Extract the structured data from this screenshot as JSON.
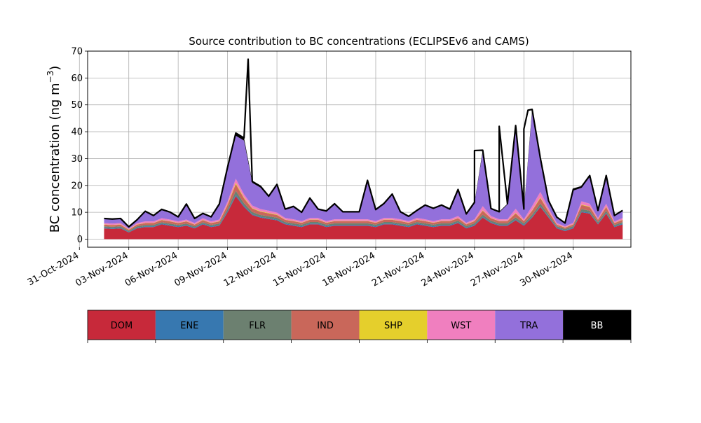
{
  "chart_data": {
    "type": "area",
    "title": "Source contribution to BC concentrations (ECLIPSEv6 and CAMS)",
    "ylabel": "BC concentration (ng m",
    "ylabel_superscript": "−3",
    "ylabel_close": ")",
    "xlabel": "",
    "ylim": [
      -3,
      70
    ],
    "xlim": [
      "2024-10-31T12:00",
      "2024-12-03T12:00"
    ],
    "grid": true,
    "yticks": [
      0,
      10,
      20,
      30,
      40,
      50,
      60,
      70
    ],
    "xticks": [
      "31-Oct-2024",
      "03-Nov-2024",
      "06-Nov-2024",
      "09-Nov-2024",
      "12-Nov-2024",
      "15-Nov-2024",
      "18-Nov-2024",
      "21-Nov-2024",
      "24-Nov-2024",
      "27-Nov-2024",
      "30-Nov-2024"
    ],
    "xtick_dates": [
      "2024-10-31",
      "2024-11-03",
      "2024-11-06",
      "2024-11-09",
      "2024-11-12",
      "2024-11-15",
      "2024-11-18",
      "2024-11-21",
      "2024-11-24",
      "2024-11-27",
      "2024-11-30"
    ],
    "x": [
      "2024-11-01T12:00",
      "2024-11-02T00:00",
      "2024-11-02T12:00",
      "2024-11-03T00:00",
      "2024-11-03T12:00",
      "2024-11-04T00:00",
      "2024-11-04T12:00",
      "2024-11-05T00:00",
      "2024-11-05T12:00",
      "2024-11-06T00:00",
      "2024-11-06T12:00",
      "2024-11-07T00:00",
      "2024-11-07T12:00",
      "2024-11-08T00:00",
      "2024-11-08T12:00",
      "2024-11-09T00:00",
      "2024-11-09T12:00",
      "2024-11-10T00:00",
      "2024-11-10T12:00",
      "2024-11-11T00:00",
      "2024-11-11T12:00",
      "2024-11-12T00:00",
      "2024-11-12T12:00",
      "2024-11-13T00:00",
      "2024-11-13T12:00",
      "2024-11-14T00:00",
      "2024-11-14T12:00",
      "2024-11-15T00:00",
      "2024-11-15T12:00",
      "2024-11-16T00:00",
      "2024-11-16T12:00",
      "2024-11-17T00:00",
      "2024-11-17T12:00",
      "2024-11-18T00:00",
      "2024-11-18T12:00",
      "2024-11-19T00:00",
      "2024-11-19T12:00",
      "2024-11-20T00:00",
      "2024-11-20T12:00",
      "2024-11-21T00:00",
      "2024-11-21T12:00",
      "2024-11-22T00:00",
      "2024-11-22T12:00",
      "2024-11-23T00:00",
      "2024-11-23T12:00",
      "2024-11-24T00:00",
      "2024-11-24T12:00",
      "2024-11-25T00:00",
      "2024-11-25T12:00",
      "2024-11-26T00:00",
      "2024-11-26T12:00",
      "2024-11-27T00:00",
      "2024-11-27T12:00",
      "2024-11-28T00:00",
      "2024-11-28T12:00",
      "2024-11-29T00:00",
      "2024-11-29T12:00",
      "2024-11-30T00:00",
      "2024-11-30T12:00",
      "2024-12-01T00:00",
      "2024-12-01T12:00",
      "2024-12-02T00:00",
      "2024-12-02T12:00",
      "2024-12-03T00:00"
    ],
    "series": [
      {
        "name": "DOM",
        "color": "#c7293a",
        "values": [
          4.0,
          3.8,
          4.0,
          2.5,
          4.0,
          4.5,
          4.5,
          5.5,
          5.0,
          4.5,
          5.0,
          4.0,
          5.5,
          4.5,
          5.0,
          10.0,
          16.0,
          12.0,
          9.0,
          8.0,
          7.5,
          7.0,
          5.5,
          5.0,
          4.5,
          5.5,
          5.5,
          4.5,
          5.0,
          5.0,
          5.0,
          5.0,
          5.0,
          4.5,
          5.5,
          5.5,
          5.0,
          4.5,
          5.5,
          5.0,
          4.5,
          5.0,
          5.0,
          6.0,
          4.0,
          5.0,
          8.0,
          6.0,
          5.0,
          5.0,
          7.0,
          5.0,
          8.0,
          12.0,
          8.0,
          4.0,
          3.0,
          4.0,
          10.0,
          9.5,
          5.5,
          9.5,
          4.5,
          5.5
        ]
      },
      {
        "name": "ENE",
        "color": "#3778b0",
        "values": [
          0.3,
          0.3,
          0.3,
          0.2,
          0.3,
          0.3,
          0.3,
          0.3,
          0.3,
          0.3,
          0.3,
          0.3,
          0.3,
          0.3,
          0.3,
          0.4,
          0.5,
          0.4,
          0.3,
          0.3,
          0.3,
          0.3,
          0.3,
          0.3,
          0.3,
          0.3,
          0.3,
          0.3,
          0.3,
          0.3,
          0.3,
          0.3,
          0.3,
          0.3,
          0.3,
          0.3,
          0.3,
          0.3,
          0.3,
          0.3,
          0.3,
          0.3,
          0.3,
          0.3,
          0.3,
          0.3,
          0.3,
          0.3,
          0.3,
          0.3,
          0.3,
          0.3,
          0.3,
          0.3,
          0.3,
          0.3,
          0.3,
          0.3,
          0.3,
          0.3,
          0.3,
          0.3,
          0.3,
          0.3
        ]
      },
      {
        "name": "FLR",
        "color": "#6c8070",
        "values": [
          0.5,
          0.5,
          0.5,
          0.4,
          0.5,
          0.5,
          0.5,
          0.5,
          0.5,
          0.5,
          0.5,
          0.5,
          0.5,
          0.5,
          0.5,
          0.8,
          1.5,
          1.0,
          0.8,
          0.7,
          0.7,
          0.7,
          0.6,
          0.6,
          0.6,
          0.6,
          0.6,
          0.6,
          0.6,
          0.6,
          0.6,
          0.6,
          0.6,
          0.6,
          0.6,
          0.6,
          0.6,
          0.6,
          0.6,
          0.6,
          0.6,
          0.6,
          0.6,
          0.6,
          0.6,
          0.6,
          0.8,
          0.6,
          0.6,
          0.6,
          0.8,
          0.6,
          0.8,
          1.0,
          0.8,
          0.5,
          0.5,
          0.6,
          0.9,
          0.8,
          0.6,
          0.8,
          0.5,
          0.6
        ]
      },
      {
        "name": "IND",
        "color": "#c9675a",
        "values": [
          0.6,
          0.6,
          0.6,
          0.4,
          0.6,
          0.7,
          0.7,
          0.8,
          0.8,
          0.7,
          0.8,
          0.6,
          0.8,
          0.7,
          0.8,
          1.5,
          2.5,
          1.8,
          1.3,
          1.2,
          1.1,
          1.0,
          0.8,
          0.8,
          0.7,
          0.8,
          0.8,
          0.7,
          0.8,
          0.8,
          0.8,
          0.8,
          0.8,
          0.7,
          0.8,
          0.8,
          0.8,
          0.7,
          0.8,
          0.8,
          0.7,
          0.8,
          0.8,
          0.9,
          0.6,
          0.8,
          1.5,
          0.9,
          0.8,
          0.8,
          1.5,
          0.8,
          1.5,
          2.0,
          1.2,
          0.6,
          0.5,
          0.6,
          1.5,
          1.4,
          0.8,
          1.4,
          0.7,
          0.8
        ]
      },
      {
        "name": "SHP",
        "color": "#e5cf2c",
        "values": [
          0.1,
          0.1,
          0.1,
          0.1,
          0.1,
          0.1,
          0.1,
          0.1,
          0.1,
          0.1,
          0.1,
          0.1,
          0.1,
          0.1,
          0.1,
          0.3,
          0.5,
          0.3,
          0.2,
          0.2,
          0.2,
          0.2,
          0.1,
          0.1,
          0.1,
          0.1,
          0.1,
          0.1,
          0.1,
          0.1,
          0.1,
          0.1,
          0.1,
          0.1,
          0.1,
          0.1,
          0.1,
          0.1,
          0.1,
          0.1,
          0.1,
          0.1,
          0.1,
          0.1,
          0.1,
          0.1,
          0.2,
          0.1,
          0.1,
          0.1,
          0.2,
          0.1,
          0.2,
          0.3,
          0.2,
          0.1,
          0.1,
          0.1,
          0.2,
          0.2,
          0.1,
          0.2,
          0.1,
          0.1
        ]
      },
      {
        "name": "WST",
        "color": "#f07fbf",
        "values": [
          0.5,
          0.5,
          0.5,
          0.3,
          0.5,
          0.5,
          0.5,
          0.6,
          0.6,
          0.5,
          0.6,
          0.5,
          0.6,
          0.5,
          0.6,
          1.0,
          1.5,
          1.2,
          0.9,
          0.8,
          0.8,
          0.7,
          0.6,
          0.6,
          0.5,
          0.6,
          0.6,
          0.5,
          0.6,
          0.6,
          0.6,
          0.6,
          0.6,
          0.5,
          0.6,
          0.6,
          0.6,
          0.5,
          0.6,
          0.6,
          0.5,
          0.6,
          0.6,
          0.7,
          0.5,
          0.6,
          1.5,
          0.7,
          0.6,
          0.6,
          1.5,
          0.6,
          1.5,
          2.0,
          1.0,
          0.5,
          0.4,
          0.5,
          1.2,
          1.0,
          0.6,
          1.0,
          0.5,
          0.6
        ]
      },
      {
        "name": "TRA",
        "color": "#9370db",
        "values": [
          1.5,
          1.5,
          1.5,
          0.6,
          1.0,
          3.5,
          2.0,
          3.0,
          2.5,
          1.5,
          5.5,
          1.5,
          1.5,
          1.5,
          5.5,
          12.0,
          16.0,
          20.0,
          8.5,
          8.0,
          5.0,
          10.0,
          3.0,
          4.5,
          3.0,
          7.0,
          3.0,
          3.5,
          5.5,
          2.5,
          2.5,
          2.5,
          14.0,
          4.0,
          5.0,
          8.5,
          2.5,
          1.5,
          2.5,
          5.0,
          4.5,
          5.0,
          3.5,
          9.5,
          3.0,
          6.0,
          20.0,
          2.5,
          2.5,
          5.5,
          30.0,
          3.5,
          35.0,
          12.0,
          2.5,
          2.0,
          1.0,
          12.0,
          5.0,
          10.0,
          2.5,
          10.0,
          2.0,
          2.5
        ]
      },
      {
        "name": "BB",
        "color": "#000000",
        "values": [
          0.2,
          0.2,
          0.2,
          0.1,
          0.2,
          0.3,
          0.2,
          0.3,
          0.3,
          0.2,
          0.3,
          0.2,
          0.3,
          0.2,
          0.3,
          0.8,
          1.0,
          1.0,
          0.5,
          0.5,
          0.4,
          0.5,
          0.3,
          0.3,
          0.3,
          0.4,
          0.3,
          0.3,
          0.3,
          0.3,
          0.3,
          0.3,
          0.5,
          0.3,
          0.4,
          0.4,
          0.3,
          0.3,
          0.3,
          0.3,
          0.3,
          0.3,
          0.3,
          0.4,
          0.3,
          0.3,
          0.8,
          0.3,
          0.3,
          0.3,
          1.0,
          0.3,
          1.0,
          0.6,
          0.3,
          0.2,
          0.2,
          0.5,
          0.4,
          0.5,
          0.3,
          0.5,
          0.2,
          0.3
        ]
      }
    ],
    "total_peaks": [
      {
        "x": "2024-11-10T06:00",
        "y": 67
      },
      {
        "x": "2024-11-24T00:00",
        "y": 33
      },
      {
        "x": "2024-11-25T12:00",
        "y": 42
      },
      {
        "x": "2024-11-27T00:00",
        "y": 41
      },
      {
        "x": "2024-11-27T06:00",
        "y": 48
      }
    ],
    "legend": {
      "placement": "bottom",
      "entries": [
        {
          "label": "DOM",
          "color": "#c7293a",
          "text_color": "#000000"
        },
        {
          "label": "ENE",
          "color": "#3778b0",
          "text_color": "#000000"
        },
        {
          "label": "FLR",
          "color": "#6c8070",
          "text_color": "#000000"
        },
        {
          "label": "IND",
          "color": "#c9675a",
          "text_color": "#000000"
        },
        {
          "label": "SHP",
          "color": "#e5cf2c",
          "text_color": "#000000"
        },
        {
          "label": "WST",
          "color": "#f07fbf",
          "text_color": "#000000"
        },
        {
          "label": "TRA",
          "color": "#9370db",
          "text_color": "#000000"
        },
        {
          "label": "BB",
          "color": "#000000",
          "text_color": "#ffffff"
        }
      ]
    }
  }
}
